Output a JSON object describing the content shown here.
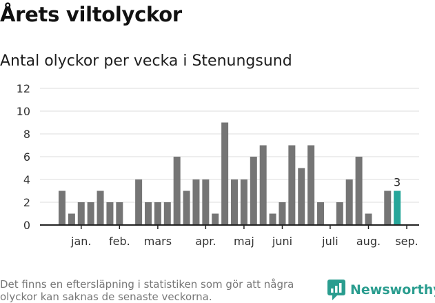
{
  "header": {
    "title": "Årets viltolyckor",
    "subtitle": "Antal olyckor per vecka i Stenungsund"
  },
  "footer": {
    "note": "Det finns en eftersläpning i statistiken som gör att några olyckor kan saknas de senaste veckorna.",
    "brand": "Newsworthy"
  },
  "colors": {
    "bar": "#757575",
    "highlight": "#26a69a",
    "grid": "#dddddd",
    "axis": "#222222",
    "brand": "#2a9d8f"
  },
  "icons": {
    "logo": "newsworthy-bar-chart-icon"
  },
  "chart_data": {
    "type": "bar",
    "x": [
      1,
      2,
      3,
      4,
      5,
      6,
      7,
      8,
      9,
      10,
      11,
      12,
      13,
      14,
      15,
      16,
      17,
      18,
      19,
      20,
      21,
      22,
      23,
      24,
      25,
      26,
      27,
      28,
      29,
      30,
      31,
      32,
      33,
      34,
      35,
      36,
      37
    ],
    "values": [
      3,
      1,
      2,
      2,
      3,
      2,
      2,
      0,
      4,
      2,
      2,
      2,
      6,
      3,
      4,
      4,
      1,
      9,
      4,
      4,
      6,
      7,
      1,
      2,
      7,
      5,
      7,
      2,
      0,
      2,
      4,
      6,
      1,
      0,
      3,
      3,
      null
    ],
    "highlight_index": 35,
    "highlight_label": "3",
    "ylim": [
      0,
      12
    ],
    "yticks": [
      0,
      2,
      4,
      6,
      8,
      10,
      12
    ],
    "months": [
      {
        "label": "jan.",
        "at": 3
      },
      {
        "label": "feb.",
        "at": 7
      },
      {
        "label": "mars",
        "at": 11
      },
      {
        "label": "apr.",
        "at": 16
      },
      {
        "label": "maj",
        "at": 20
      },
      {
        "label": "juni",
        "at": 24
      },
      {
        "label": "juli",
        "at": 29
      },
      {
        "label": "aug.",
        "at": 33
      },
      {
        "label": "sep.",
        "at": 37
      }
    ],
    "grid": true,
    "legend": "none"
  }
}
